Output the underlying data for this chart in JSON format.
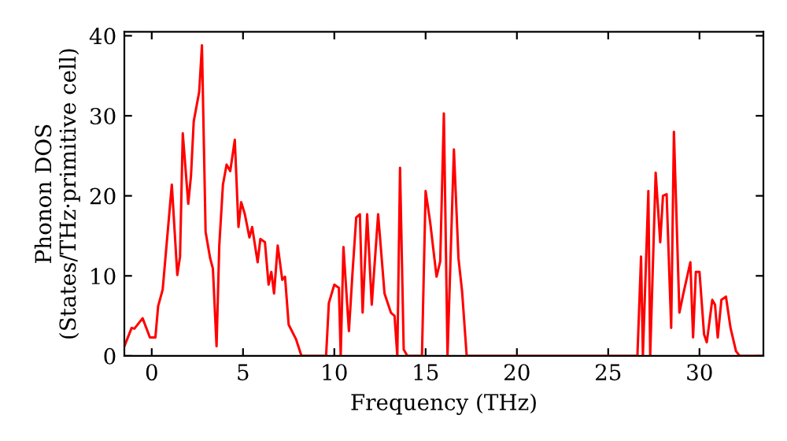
{
  "chart_data": {
    "type": "line",
    "xlabel": "Frequency (THz)",
    "ylabel": "Phonon DOS\n(States/THz·primitive cell)",
    "xlim": [
      -1.5,
      33.5
    ],
    "ylim": [
      0,
      40.5
    ],
    "xticks": [
      0,
      5,
      10,
      15,
      20,
      25,
      30
    ],
    "yticks": [
      0,
      10,
      20,
      30,
      40
    ],
    "grid": false,
    "legend": false,
    "line_style": "solid",
    "marker": "none",
    "series": [
      {
        "color": "#ff0000",
        "x": [
          -1.5,
          -1.1,
          -0.95,
          -0.5,
          -0.1,
          0.2,
          0.35,
          0.6,
          1.1,
          1.4,
          1.55,
          1.7,
          2.0,
          2.15,
          2.3,
          2.6,
          2.75,
          2.95,
          3.2,
          3.35,
          3.55,
          3.7,
          3.9,
          4.1,
          4.3,
          4.55,
          4.75,
          4.9,
          5.1,
          5.35,
          5.5,
          5.8,
          5.95,
          6.2,
          6.4,
          6.55,
          6.7,
          6.9,
          7.15,
          7.3,
          7.5,
          7.9,
          8.2,
          9.55,
          9.7,
          10.0,
          10.25,
          10.35,
          10.5,
          10.8,
          11.0,
          11.2,
          11.4,
          11.55,
          11.8,
          12.05,
          12.4,
          12.75,
          13.1,
          13.3,
          13.45,
          13.6,
          13.8,
          14.0,
          14.8,
          15.0,
          15.25,
          15.6,
          15.8,
          16.0,
          16.2,
          16.55,
          16.8,
          17.0,
          17.25,
          26.6,
          26.8,
          26.9,
          27.2,
          27.3,
          27.6,
          27.85,
          28.0,
          28.2,
          28.45,
          28.6,
          28.9,
          29.1,
          29.5,
          29.65,
          29.8,
          30.0,
          30.25,
          30.4,
          30.7,
          30.85,
          31.0,
          31.2,
          31.45,
          31.7,
          32.0,
          32.2,
          33.5
        ],
        "values": [
          1.2,
          3.5,
          3.4,
          4.7,
          2.3,
          2.3,
          6.2,
          8.3,
          21.4,
          10.1,
          12.4,
          27.8,
          19.0,
          22.5,
          29.3,
          33,
          38.8,
          15.5,
          12.2,
          10.9,
          1.2,
          13.8,
          21.4,
          23.9,
          23.1,
          27,
          16.1,
          19.2,
          17.7,
          14.8,
          16.1,
          11.7,
          14.6,
          14.2,
          8.9,
          10.5,
          7.8,
          13.8,
          9.5,
          9.9,
          3.9,
          2.1,
          0,
          0,
          6.6,
          8.9,
          8.5,
          0,
          13.6,
          3.1,
          10.5,
          17.3,
          17.7,
          5.4,
          17.7,
          6.4,
          17.7,
          7.8,
          5.4,
          5.0,
          0,
          23.5,
          0.8,
          0,
          0,
          20.6,
          16.7,
          9.9,
          11.8,
          30.3,
          0,
          25.8,
          12.2,
          8.0,
          0,
          0,
          12.4,
          0,
          20.6,
          0,
          22.9,
          14.2,
          20,
          20.2,
          3.5,
          28,
          5.4,
          7.6,
          11.7,
          2.3,
          10.5,
          10.5,
          2.7,
          1.7,
          7.0,
          6.4,
          2.3,
          7.0,
          7.4,
          3.5,
          0.6,
          0,
          0
        ]
      }
    ]
  }
}
